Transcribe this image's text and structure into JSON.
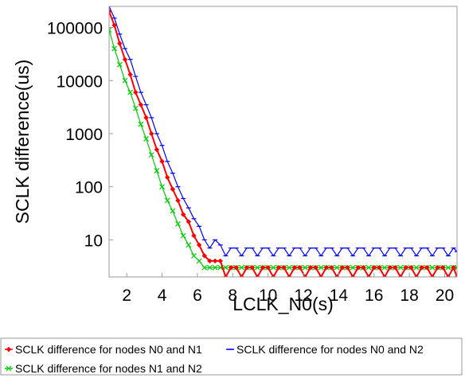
{
  "chart_data": {
    "type": "line",
    "xlabel": "LCLK_N0(s)",
    "ylabel": "SCLK difference(us)",
    "y_scale": "log",
    "xlim": [
      1,
      20.7
    ],
    "ylim": [
      2,
      250000
    ],
    "x_ticks": [
      2,
      4,
      6,
      8,
      10,
      12,
      14,
      16,
      18,
      20
    ],
    "y_ticks": [
      10,
      100,
      1000,
      10000,
      100000
    ],
    "grid": false,
    "legend_position": "bottom",
    "series": [
      {
        "name": "SCLK difference for nodes N0 and N1",
        "color": "#ff0000",
        "marker": "diamond",
        "x": [
          1.0,
          1.3,
          1.6,
          1.9,
          2.2,
          2.5,
          2.8,
          3.1,
          3.4,
          3.7,
          4.0,
          4.3,
          4.6,
          4.9,
          5.2,
          5.5,
          5.8,
          6.1,
          6.4,
          6.7,
          7.0,
          7.3,
          7.6,
          7.9,
          8.2,
          8.5,
          8.8,
          9.1,
          9.4,
          9.7,
          10.0,
          10.3,
          10.6,
          10.9,
          11.2,
          11.5,
          11.8,
          12.1,
          12.4,
          12.7,
          13.0,
          13.3,
          13.6,
          13.9,
          14.2,
          14.5,
          14.8,
          15.1,
          15.4,
          15.7,
          16.0,
          16.3,
          16.6,
          16.9,
          17.2,
          17.5,
          17.8,
          18.1,
          18.4,
          18.7,
          19.0,
          19.3,
          19.6,
          19.9,
          20.2,
          20.5,
          20.7
        ],
        "y": [
          200000,
          110000,
          50000,
          25000,
          13000,
          6000,
          3500,
          2000,
          1000,
          500,
          300,
          150,
          90,
          55,
          30,
          22,
          12,
          8,
          5,
          4,
          4,
          4,
          2,
          3,
          3,
          2,
          3,
          3,
          2,
          3,
          3,
          2,
          3,
          3,
          2,
          3,
          3,
          2,
          3,
          3,
          2,
          3,
          3,
          2,
          3,
          3,
          2,
          3,
          3,
          2,
          3,
          3,
          2,
          3,
          3,
          2,
          3,
          3,
          2,
          3,
          3,
          2,
          3,
          3,
          2,
          3,
          2
        ]
      },
      {
        "name": "SCLK difference for nodes N0 and N2",
        "color": "#0000ff",
        "marker": "dash",
        "x": [
          1.0,
          1.3,
          1.6,
          1.9,
          2.2,
          2.5,
          2.8,
          3.1,
          3.4,
          3.7,
          4.0,
          4.3,
          4.6,
          4.9,
          5.2,
          5.5,
          5.8,
          6.1,
          6.4,
          6.7,
          7.0,
          7.3,
          7.6,
          7.9,
          8.2,
          8.5,
          8.8,
          9.1,
          9.4,
          9.7,
          10.0,
          10.3,
          10.6,
          10.9,
          11.2,
          11.5,
          11.8,
          12.1,
          12.4,
          12.7,
          13.0,
          13.3,
          13.6,
          13.9,
          14.2,
          14.5,
          14.8,
          15.1,
          15.4,
          15.7,
          16.0,
          16.3,
          16.6,
          16.9,
          17.2,
          17.5,
          17.8,
          18.1,
          18.4,
          18.7,
          19.0,
          19.3,
          19.6,
          19.9,
          20.2,
          20.5,
          20.7
        ],
        "y": [
          250000,
          150000,
          75000,
          40000,
          25000,
          12000,
          6000,
          3500,
          2000,
          1000,
          600,
          300,
          180,
          100,
          60,
          40,
          25,
          18,
          10,
          7,
          10,
          8,
          5,
          7,
          7,
          5,
          7,
          7,
          5,
          7,
          7,
          5,
          7,
          7,
          5,
          7,
          7,
          5,
          7,
          7,
          5,
          7,
          7,
          5,
          7,
          7,
          5,
          7,
          7,
          5,
          7,
          7,
          5,
          7,
          7,
          5,
          7,
          7,
          5,
          7,
          7,
          5,
          7,
          7,
          5,
          7,
          6
        ]
      },
      {
        "name": "SCLK difference for nodes N1 and N2",
        "color": "#00cc00",
        "marker": "x",
        "x": [
          1.0,
          1.3,
          1.6,
          1.9,
          2.2,
          2.5,
          2.8,
          3.1,
          3.4,
          3.7,
          4.0,
          4.3,
          4.6,
          4.9,
          5.2,
          5.5,
          5.8,
          6.1,
          6.4,
          6.7,
          7.0,
          7.3,
          7.6,
          7.9,
          8.2,
          8.5,
          8.8,
          9.1,
          9.4,
          9.7,
          10.0,
          10.3,
          10.6,
          10.9,
          11.2,
          11.5,
          11.8,
          12.1,
          12.4,
          12.7,
          13.0,
          13.3,
          13.6,
          13.9,
          14.2,
          14.5,
          14.8,
          15.1,
          15.4,
          15.7,
          16.0,
          16.3,
          16.6,
          16.9,
          17.2,
          17.5,
          17.8,
          18.1,
          18.4,
          18.7,
          19.0,
          19.3,
          19.6,
          19.9,
          20.2,
          20.5,
          20.7
        ],
        "y": [
          90000,
          40000,
          20000,
          10000,
          6000,
          3000,
          1500,
          800,
          400,
          200,
          100,
          55,
          35,
          20,
          12,
          8,
          5,
          4,
          3,
          3,
          3,
          3,
          3,
          3,
          3,
          3,
          3,
          3,
          3,
          3,
          3,
          3,
          3,
          3,
          3,
          3,
          3,
          3,
          3,
          3,
          3,
          3,
          3,
          3,
          3,
          3,
          3,
          3,
          3,
          3,
          3,
          3,
          3,
          3,
          3,
          3,
          3,
          3,
          3,
          3,
          3,
          3,
          3,
          3,
          3,
          3,
          3
        ]
      }
    ]
  }
}
